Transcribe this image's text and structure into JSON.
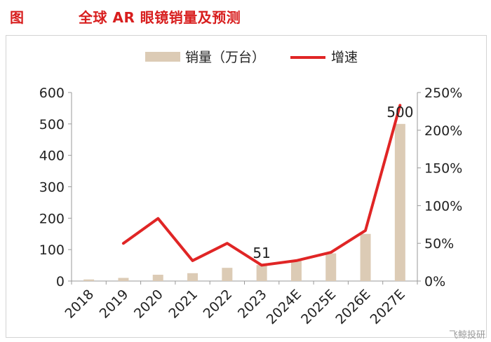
{
  "figure_label": "图",
  "title": "全球 AR 眼镜销量及预测",
  "watermark": "飞鲸投研",
  "colors": {
    "bar": "#dccbb5",
    "line": "#e02525",
    "title": "#d81e1e"
  },
  "chart_data": {
    "type": "bar+line",
    "title": "全球 AR 眼镜销量及预测",
    "categories": [
      "2018",
      "2019",
      "2020",
      "2021",
      "2022",
      "2023",
      "2024E",
      "2025E",
      "2026E",
      "2027E"
    ],
    "series": [
      {
        "name": "销量（万台）",
        "type": "bar",
        "axis": "left",
        "values": [
          5,
          10,
          20,
          25,
          42,
          51,
          65,
          88,
          150,
          500
        ]
      },
      {
        "name": "增速",
        "type": "line",
        "axis": "right",
        "values": [
          null,
          0.5,
          0.83,
          0.27,
          0.5,
          0.21,
          0.27,
          0.38,
          0.67,
          2.33
        ]
      }
    ],
    "left_axis": {
      "ylim": [
        0,
        600
      ],
      "ticks": [
        "0",
        "100",
        "200",
        "300",
        "400",
        "500",
        "600"
      ]
    },
    "right_axis": {
      "ylim": [
        0,
        2.5
      ],
      "ticks": [
        "0%",
        "50%",
        "100%",
        "150%",
        "200%",
        "250%"
      ]
    },
    "data_labels": [
      {
        "category": "2023",
        "text": "51"
      },
      {
        "category": "2027E",
        "text": "500"
      }
    ],
    "legend": {
      "position": "top",
      "entries": [
        "销量（万台）",
        "增速"
      ]
    }
  }
}
